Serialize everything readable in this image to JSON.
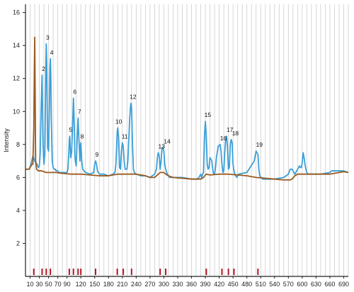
{
  "chart_data": {
    "type": "line",
    "title": "",
    "xlabel": "",
    "ylabel": "Intensity",
    "xlim": [
      0,
      700
    ],
    "ylim": [
      0,
      16.5
    ],
    "x_ticks": [
      10,
      30,
      50,
      70,
      90,
      120,
      150,
      180,
      210,
      240,
      270,
      300,
      330,
      360,
      390,
      420,
      450,
      480,
      510,
      540,
      570,
      600,
      630,
      660,
      690
    ],
    "x_tick_labels": [
      "10",
      "30",
      "50",
      "70",
      "90",
      "120",
      "150",
      "180",
      "210",
      "240",
      "270",
      "300",
      "330",
      "360",
      "390",
      "420",
      "450",
      "480",
      "510",
      "540",
      "570",
      "600",
      "630",
      "660",
      "690"
    ],
    "y_ticks": [
      2,
      4,
      6,
      8,
      10,
      12,
      14,
      16
    ],
    "y_tick_labels": [
      "2",
      "4",
      "6",
      "8",
      "10",
      "12",
      "14",
      "16"
    ],
    "grid": {
      "vertical": true,
      "horizontal": false
    },
    "colors": {
      "blue_series": "#3a9fd8",
      "brown_series": "#9b5a1e",
      "marker": "#b0152a",
      "grid": "#cccccc"
    },
    "series": [
      {
        "color": "#3a9fd8",
        "x": [
          0,
          8,
          12,
          16,
          20,
          25,
          28,
          30,
          32,
          33,
          34,
          35,
          36,
          38,
          40,
          42,
          43,
          44,
          45,
          46,
          48,
          50,
          52,
          53,
          54,
          55,
          56,
          58,
          60,
          62,
          64,
          65,
          66,
          67,
          68,
          70,
          72,
          80,
          90,
          92,
          94,
          95,
          96,
          98,
          100,
          102,
          104,
          106,
          107,
          108,
          110,
          112,
          114,
          116,
          118,
          119,
          120,
          122,
          124,
          130,
          140,
          148,
          150,
          152,
          154,
          156,
          160,
          170,
          180,
          190,
          194,
          196,
          198,
          199,
          200,
          202,
          204,
          206,
          208,
          210,
          212,
          214,
          216,
          220,
          222,
          224,
          226,
          228,
          229,
          230,
          232,
          234,
          236,
          240,
          250,
          260,
          270,
          275,
          280,
          284,
          286,
          288,
          290,
          292,
          294,
          296,
          298,
          300,
          302,
          304,
          306,
          308,
          310,
          312,
          320,
          340,
          360,
          372,
          376,
          378,
          380,
          382,
          384,
          386,
          388,
          390,
          392,
          394,
          396,
          398,
          400,
          404,
          406,
          408,
          410,
          412,
          414,
          418,
          422,
          424,
          426,
          428,
          430,
          432,
          434,
          436,
          438,
          440,
          442,
          444,
          446,
          448,
          450,
          452,
          454,
          456,
          458,
          462,
          480,
          496,
          500,
          504,
          506,
          508,
          510,
          512,
          514,
          520,
          540,
          560,
          570,
          574,
          578,
          582,
          584,
          586,
          590,
          594,
          596,
          598,
          600,
          602,
          604,
          606,
          608,
          610,
          612,
          614,
          616,
          620,
          640,
          660,
          664,
          670,
          680,
          690,
          700
        ],
        "y": [
          6.5,
          6.5,
          6.8,
          7.3,
          7.0,
          6.8,
          6.6,
          6.7,
          7.5,
          9.0,
          10.2,
          11.2,
          12.2,
          8.0,
          6.8,
          7.5,
          10.0,
          12.5,
          14.1,
          13.0,
          7.8,
          7.6,
          10.5,
          12.7,
          13.2,
          12.0,
          9.5,
          7.0,
          6.6,
          6.5,
          6.5,
          6.5,
          6.4,
          6.4,
          6.4,
          6.4,
          6.3,
          6.3,
          6.3,
          6.5,
          7.5,
          8.3,
          8.5,
          7.2,
          7.5,
          9.0,
          10.8,
          9.0,
          7.4,
          7.0,
          6.7,
          8.3,
          9.6,
          8.2,
          7.0,
          7.9,
          8.1,
          7.0,
          6.5,
          6.3,
          6.2,
          6.3,
          6.8,
          7.0,
          6.8,
          6.4,
          6.2,
          6.2,
          6.1,
          6.2,
          6.3,
          6.8,
          8.1,
          8.8,
          9.0,
          8.4,
          6.6,
          6.5,
          7.6,
          8.1,
          7.9,
          7.0,
          6.5,
          6.5,
          7.0,
          8.3,
          9.6,
          10.4,
          10.5,
          10.2,
          8.0,
          6.5,
          6.3,
          6.2,
          6.1,
          6.1,
          6.0,
          6.1,
          6.2,
          6.5,
          7.2,
          7.5,
          7.3,
          6.5,
          7.0,
          7.8,
          7.8,
          7.6,
          6.8,
          6.5,
          6.3,
          6.2,
          6.1,
          6.0,
          6.0,
          6.0,
          5.9,
          5.9,
          6.0,
          6.1,
          6.2,
          6.0,
          6.2,
          6.3,
          8.5,
          9.4,
          8.5,
          6.8,
          6.5,
          6.6,
          7.2,
          7.0,
          6.5,
          6.2,
          6.2,
          6.6,
          7.2,
          7.9,
          8.0,
          7.6,
          6.8,
          6.3,
          6.4,
          7.5,
          8.3,
          8.5,
          7.8,
          6.5,
          6.6,
          8.0,
          8.3,
          8.1,
          6.8,
          6.4,
          6.2,
          6.1,
          6.0,
          6.2,
          6.3,
          7.0,
          7.6,
          7.4,
          6.5,
          6.1,
          6.0,
          6.0,
          5.9,
          5.9,
          5.9,
          6.0,
          6.2,
          6.5,
          6.5,
          6.3,
          6.2,
          6.3,
          6.5,
          6.7,
          6.6,
          6.6,
          6.9,
          7.5,
          7.2,
          6.8,
          6.5,
          6.3,
          6.2,
          6.2,
          6.2,
          6.2,
          6.2,
          6.3,
          6.4,
          6.4,
          6.4,
          6.4,
          6.3
        ]
      },
      {
        "color": "#9b5a1e",
        "x": [
          0,
          8,
          10,
          12,
          14,
          16,
          18,
          19,
          20,
          21,
          22,
          24,
          28,
          35,
          45,
          55,
          65,
          80,
          100,
          120,
          140,
          160,
          180,
          200,
          240,
          260,
          270,
          275,
          280,
          284,
          288,
          292,
          296,
          300,
          304,
          310,
          320,
          340,
          360,
          380,
          386,
          390,
          392,
          400,
          420,
          440,
          460,
          480,
          500,
          520,
          540,
          560,
          570,
          574,
          578,
          584,
          590,
          594,
          600,
          610,
          640,
          660,
          670,
          680,
          690,
          700
        ],
        "y": [
          6.5,
          6.5,
          6.6,
          6.7,
          6.8,
          6.8,
          9.0,
          12.0,
          14.5,
          11.0,
          7.0,
          6.5,
          6.4,
          6.4,
          6.3,
          6.3,
          6.3,
          6.25,
          6.2,
          6.2,
          6.15,
          6.1,
          6.1,
          6.2,
          6.2,
          6.1,
          6.0,
          6.0,
          6.0,
          6.1,
          6.2,
          6.3,
          6.3,
          6.3,
          6.2,
          6.1,
          6.0,
          5.95,
          5.9,
          5.9,
          6.0,
          6.15,
          6.2,
          6.15,
          6.2,
          6.2,
          6.15,
          6.1,
          6.0,
          5.95,
          5.9,
          5.85,
          5.85,
          5.85,
          5.9,
          6.1,
          6.2,
          6.2,
          6.2,
          6.2,
          6.2,
          6.2,
          6.25,
          6.3,
          6.35,
          6.3
        ]
      }
    ],
    "peak_labels": [
      {
        "text": "2",
        "x": 36,
        "y": 12.2
      },
      {
        "text": "3",
        "x": 45,
        "y": 14.1
      },
      {
        "text": "4",
        "x": 54,
        "y": 13.2
      },
      {
        "text": "5",
        "x": 95,
        "y": 8.5
      },
      {
        "text": "6",
        "x": 104,
        "y": 10.8
      },
      {
        "text": "7",
        "x": 114,
        "y": 9.6
      },
      {
        "text": "8",
        "x": 120,
        "y": 8.1
      },
      {
        "text": "9",
        "x": 152,
        "y": 7.0
      },
      {
        "text": "10",
        "x": 199,
        "y": 9.0
      },
      {
        "text": "11",
        "x": 212,
        "y": 8.1
      },
      {
        "text": "12",
        "x": 230,
        "y": 10.5
      },
      {
        "text": "13",
        "x": 292,
        "y": 7.5
      },
      {
        "text": "14",
        "x": 304,
        "y": 7.8
      },
      {
        "text": "15",
        "x": 392,
        "y": 9.4
      },
      {
        "text": "16",
        "x": 426,
        "y": 8.0
      },
      {
        "text": "17",
        "x": 440,
        "y": 8.5
      },
      {
        "text": "18",
        "x": 452,
        "y": 8.3
      },
      {
        "text": "19",
        "x": 504,
        "y": 7.6
      }
    ],
    "markers_x": [
      18,
      36,
      45,
      54,
      95,
      104,
      114,
      120,
      152,
      199,
      212,
      230,
      292,
      304,
      392,
      426,
      440,
      452,
      504
    ]
  }
}
